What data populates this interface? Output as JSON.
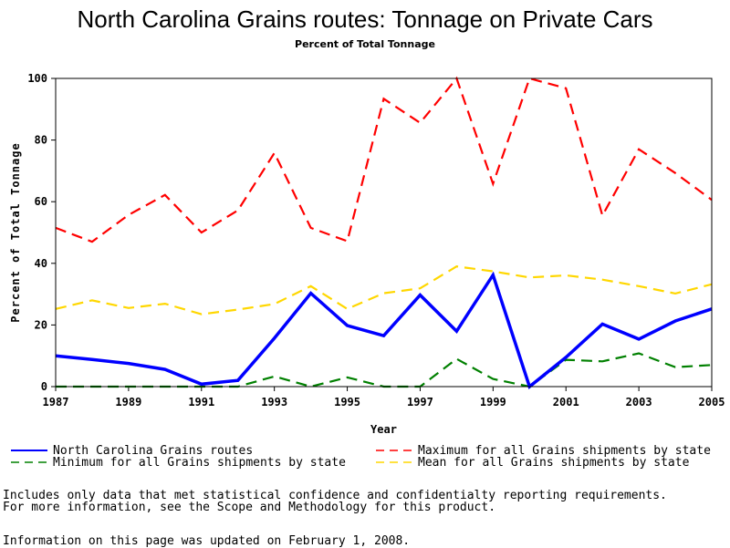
{
  "title": "North Carolina Grains routes: Tonnage on Private Cars",
  "subtitle": "Percent of Total Tonnage",
  "notes": {
    "line1": "Includes only data that met statistical confidence and confidentialty reporting requirements.",
    "line2": "For more information, see the Scope and Methodology for this product.",
    "line3": "Information on this page was updated on February 1, 2008."
  },
  "chart_data": {
    "type": "line",
    "title": "North Carolina Grains routes: Tonnage on Private Cars",
    "subtitle": "Percent of Total Tonnage",
    "xlabel": "Year",
    "ylabel": "Percent of Total Tonnage",
    "xlim": [
      1987,
      2005
    ],
    "ylim": [
      0,
      100
    ],
    "xticks": [
      1987,
      1989,
      1991,
      1993,
      1995,
      1997,
      1999,
      2001,
      2003,
      2005
    ],
    "yticks": [
      0,
      20,
      40,
      60,
      80,
      100
    ],
    "x": [
      1987,
      1988,
      1989,
      1990,
      1991,
      1992,
      1993,
      1994,
      1995,
      1996,
      1997,
      1998,
      1999,
      2000,
      2001,
      2002,
      2003,
      2004,
      2005
    ],
    "legend_position": "bottom",
    "series": [
      {
        "name": "North Carolina Grains routes",
        "color": "#0000ff",
        "style": "solid",
        "values": [
          10,
          8.8,
          7.5,
          5.6,
          0.8,
          2,
          15.7,
          30.3,
          19.8,
          16.5,
          29.7,
          18,
          36.2,
          0,
          9.5,
          20.3,
          15.4,
          21.3,
          25.2
        ]
      },
      {
        "name": "Maximum for all Grains shipments by state",
        "color": "#ff0000",
        "style": "dashed",
        "values": [
          51.5,
          47,
          55.7,
          62.2,
          50,
          57.2,
          75.8,
          51.5,
          47.2,
          93.4,
          85.6,
          100,
          65.8,
          100,
          96.8,
          55.5,
          77,
          69.3,
          60.6
        ]
      },
      {
        "name": "Minimum for all Grains shipments by state",
        "color": "#008000",
        "style": "dashed",
        "values": [
          0,
          0,
          0,
          0,
          0,
          0,
          3.3,
          0,
          3,
          0,
          0,
          9,
          2.5,
          0,
          8.7,
          8.2,
          10.8,
          6.3,
          7
        ]
      },
      {
        "name": "Mean for all Grains shipments by state",
        "color": "#ffd700",
        "style": "dashed",
        "values": [
          25.2,
          28,
          25.5,
          26.9,
          23.5,
          25,
          26.8,
          32.6,
          25.2,
          30.3,
          31.9,
          39,
          37.4,
          35.4,
          36.1,
          34.7,
          32.6,
          30.2,
          33.2
        ]
      }
    ]
  }
}
